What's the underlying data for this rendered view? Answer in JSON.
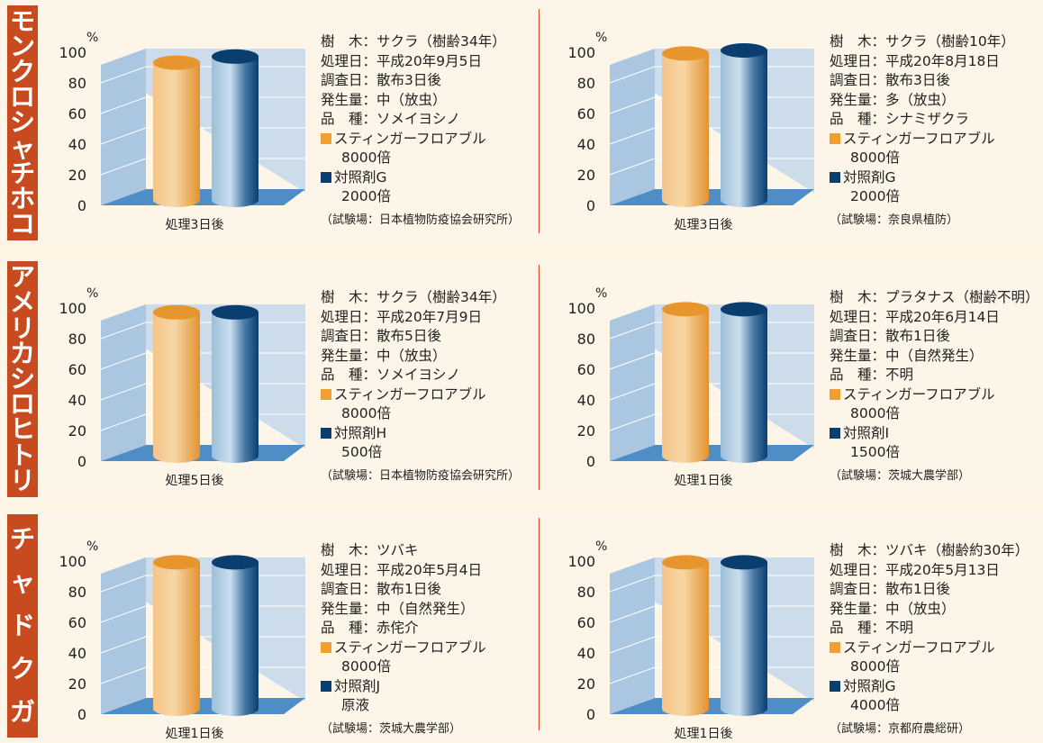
{
  "colors": {
    "stinger": "#f0a032",
    "control": "#0a3e6f",
    "sidebar": "#c84a1f",
    "wall": "#c7d9ea",
    "floor": "#4e8dc5"
  },
  "rows": [
    {
      "pest": "モンクロシャチホコ",
      "panels": [
        {
          "info": [
            "樹　木：サクラ（樹齢34年）",
            "処理日：平成20年9月5日",
            "調査日：散布3日後",
            "発生量：中（放虫）",
            "品　種：ソメイヨシノ"
          ],
          "legend": [
            {
              "lines": [
                "スティンガーフロアブル",
                "8000倍"
              ]
            },
            {
              "lines": [
                "対照剤G",
                "2000倍"
              ]
            }
          ],
          "source": "（試験場：日本植物防疫協会研究所）",
          "chart_data": {
            "type": "bar",
            "ylabel": "%",
            "yticks": [
              0,
              20,
              40,
              60,
              80,
              100
            ],
            "ylim": [
              0,
              100
            ],
            "categories": [
              "処理3日後"
            ],
            "series": [
              {
                "name": "スティンガーフロアブル 8000倍",
                "values": [
                  92
                ]
              },
              {
                "name": "対照剤G 2000倍",
                "values": [
                  96
                ]
              }
            ]
          }
        },
        {
          "info": [
            "樹　木：サクラ（樹齢10年）",
            "処理日：平成20年8月18日",
            "調査日：散布3日後",
            "発生量：多（放虫）",
            "品　種：シナミザクラ"
          ],
          "legend": [
            {
              "lines": [
                "スティンガーフロアブル",
                "8000倍"
              ]
            },
            {
              "lines": [
                "対照剤G",
                "2000倍"
              ]
            }
          ],
          "source": "（試験場：奈良県植防）",
          "chart_data": {
            "type": "bar",
            "ylabel": "%",
            "yticks": [
              0,
              20,
              40,
              60,
              80,
              100
            ],
            "ylim": [
              0,
              100
            ],
            "categories": [
              "処理3日後"
            ],
            "series": [
              {
                "name": "スティンガーフロアブル 8000倍",
                "values": [
                  98
                ]
              },
              {
                "name": "対照剤G 2000倍",
                "values": [
                  100
                ]
              }
            ]
          }
        }
      ]
    },
    {
      "pest": "アメリカシロヒトリ",
      "panels": [
        {
          "info": [
            "樹　木：サクラ（樹齢34年）",
            "処理日：平成20年7月9日",
            "調査日：散布5日後",
            "発生量：中（放虫）",
            "品　種：ソメイヨシノ"
          ],
          "legend": [
            {
              "lines": [
                "スティンガーフロアブル",
                "8000倍"
              ]
            },
            {
              "lines": [
                "対照剤H",
                "500倍"
              ]
            }
          ],
          "source": "（試験場：日本植物防疫協会研究所）",
          "chart_data": {
            "type": "bar",
            "ylabel": "%",
            "yticks": [
              0,
              20,
              40,
              60,
              80,
              100
            ],
            "ylim": [
              0,
              100
            ],
            "categories": [
              "処理5日後"
            ],
            "series": [
              {
                "name": "スティンガーフロアブル 8000倍",
                "values": [
                  96
                ]
              },
              {
                "name": "対照剤H 500倍",
                "values": [
                  96
                ]
              }
            ]
          }
        },
        {
          "info": [
            "樹　木：プラタナス（樹齢不明）",
            "処理日：平成20年6月14日",
            "調査日：散布1日後",
            "発生量：中（自然発生）",
            "品　種：不明"
          ],
          "legend": [
            {
              "lines": [
                "スティンガーフロアブル",
                "8000倍"
              ]
            },
            {
              "lines": [
                "対照剤I",
                "1500倍"
              ]
            }
          ],
          "source": "（試験場：茨城大農学部）",
          "chart_data": {
            "type": "bar",
            "ylabel": "%",
            "yticks": [
              0,
              20,
              40,
              60,
              80,
              100
            ],
            "ylim": [
              0,
              100
            ],
            "categories": [
              "処理1日後"
            ],
            "series": [
              {
                "name": "スティンガーフロアブル 8000倍",
                "values": [
                  98
                ]
              },
              {
                "name": "対照剤I 1500倍",
                "values": [
                  98
                ]
              }
            ]
          }
        }
      ]
    },
    {
      "pest": "チャドクガ",
      "panels": [
        {
          "info": [
            "樹　木：ツバキ",
            "処理日：平成20年5月4日",
            "調査日：散布1日後",
            "発生量：中（自然発生）",
            "品　種：赤侘介"
          ],
          "legend": [
            {
              "lines": [
                "スティンガーフロアブル",
                "8000倍"
              ]
            },
            {
              "lines": [
                "対照剤J",
                "原液"
              ]
            }
          ],
          "source": "（試験場：茨城大農学部）",
          "chart_data": {
            "type": "bar",
            "ylabel": "%",
            "yticks": [
              0,
              20,
              40,
              60,
              80,
              100
            ],
            "ylim": [
              0,
              100
            ],
            "categories": [
              "処理1日後"
            ],
            "series": [
              {
                "name": "スティンガーフロアブル 8000倍",
                "values": [
                  98
                ]
              },
              {
                "name": "対照剤J 原液",
                "values": [
                  98
                ]
              }
            ]
          }
        },
        {
          "info": [
            "樹　木：ツバキ（樹齢約30年）",
            "処理日：平成20年5月13日",
            "調査日：散布1日後",
            "発生量：中（放虫）",
            "品　種：不明"
          ],
          "legend": [
            {
              "lines": [
                "スティンガーフロアブル",
                "8000倍"
              ]
            },
            {
              "lines": [
                "対照剤G",
                "4000倍"
              ]
            }
          ],
          "source": "（試験場：京都府農総研）",
          "chart_data": {
            "type": "bar",
            "ylabel": "%",
            "yticks": [
              0,
              20,
              40,
              60,
              80,
              100
            ],
            "ylim": [
              0,
              100
            ],
            "categories": [
              "処理1日後"
            ],
            "series": [
              {
                "name": "スティンガーフロアブル 8000倍",
                "values": [
                  98
                ]
              },
              {
                "name": "対照剤G 4000倍",
                "values": [
                  98
                ]
              }
            ]
          }
        }
      ]
    }
  ]
}
